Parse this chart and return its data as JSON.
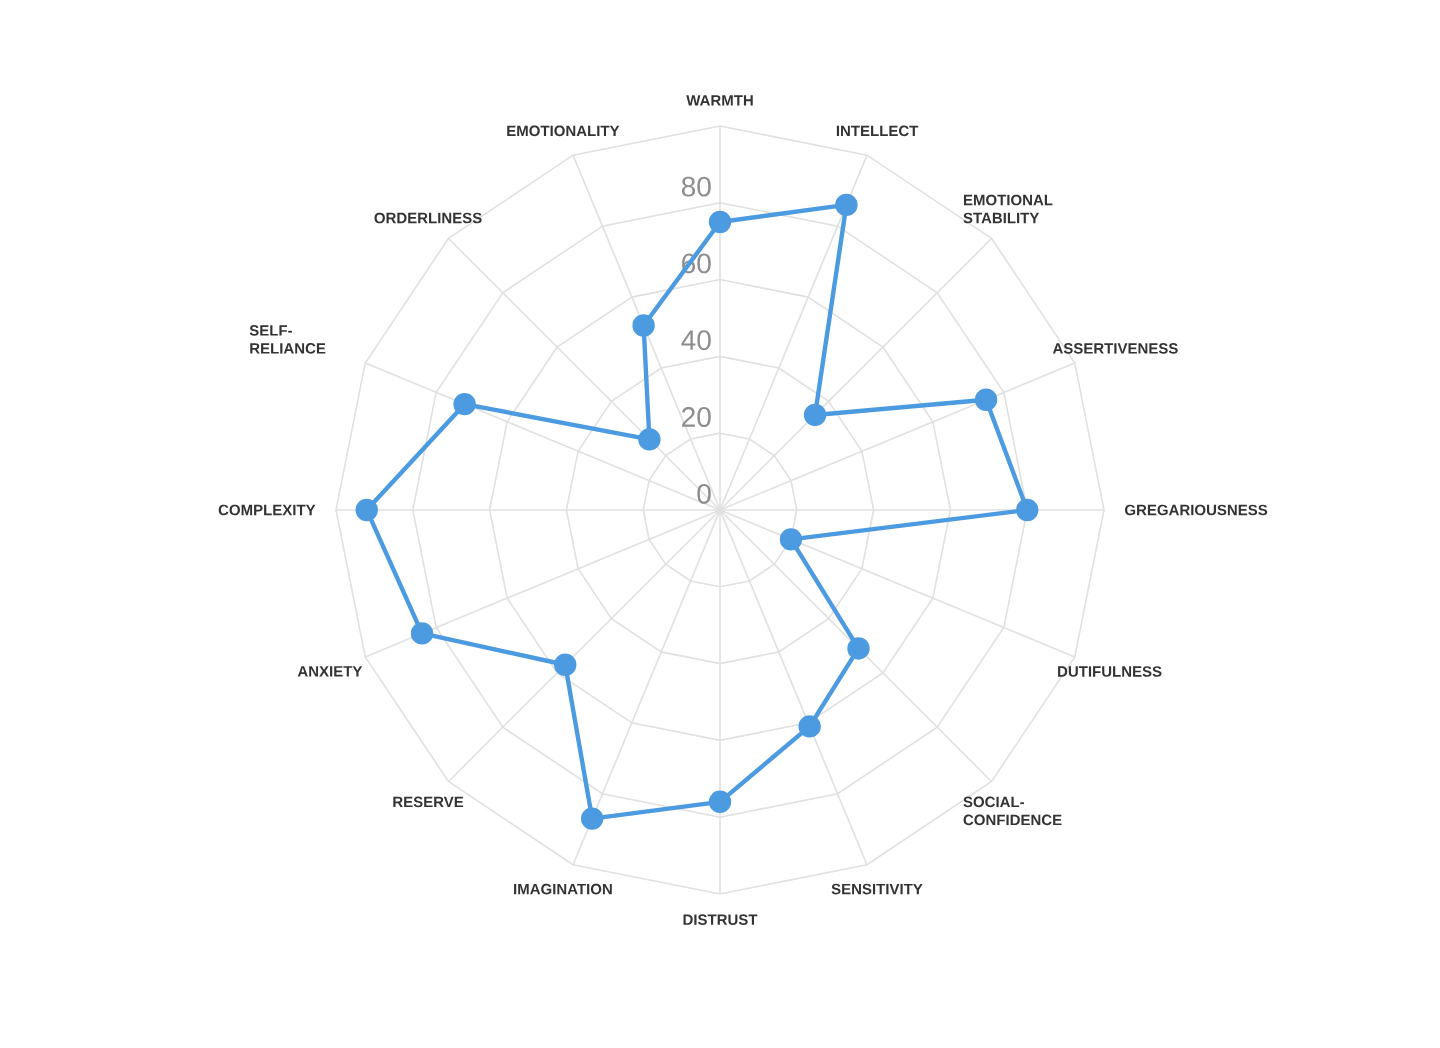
{
  "chart_data": {
    "type": "radar",
    "categories": [
      "WARMTH",
      "INTELLECT",
      "EMOTIONAL STABILITY",
      "ASSERTIVENESS",
      "GREGARIOUSNESS",
      "DUTIFULNESS",
      "SOCIAL-CONFIDENCE",
      "SENSITIVITY",
      "DISTRUST",
      "IMAGINATION",
      "RESERVE",
      "ANXIETY",
      "COMPLEXITY",
      "SELF-RELIANCE",
      "ORDERLINESS",
      "EMOTIONALITY"
    ],
    "series": [
      {
        "color": "#4c9be0",
        "values": [
          75,
          86,
          35,
          75,
          80,
          20,
          51,
          61,
          76,
          87,
          57,
          84,
          92,
          72,
          26,
          52
        ]
      }
    ],
    "ylim": [
      0,
      100
    ],
    "yticks": [
      0,
      20,
      40,
      60,
      80
    ],
    "grid": true,
    "marker": "circle"
  }
}
